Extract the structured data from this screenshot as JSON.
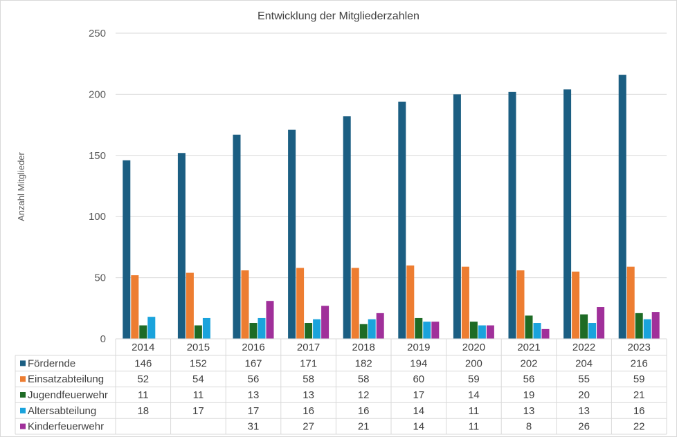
{
  "chart_data": {
    "type": "bar",
    "title": "Entwicklung  der Mitgliederzahlen",
    "xlabel": "",
    "ylabel": "Anzahl Mitglieder",
    "ylim": [
      0,
      250
    ],
    "yticks": [
      0,
      50,
      100,
      150,
      200,
      250
    ],
    "grid": true,
    "legend": "data-table",
    "categories": [
      "2014",
      "2015",
      "2016",
      "2017",
      "2018",
      "2019",
      "2020",
      "2021",
      "2022",
      "2023"
    ],
    "series": [
      {
        "name": "Fördernde",
        "color": "#1b5e82",
        "values": [
          146,
          152,
          167,
          171,
          182,
          194,
          200,
          202,
          204,
          216
        ]
      },
      {
        "name": "Einsatzabteilung",
        "color": "#ed7d31",
        "values": [
          52,
          54,
          56,
          58,
          58,
          60,
          59,
          56,
          55,
          59
        ]
      },
      {
        "name": "Jugendfeuerwehr",
        "color": "#1e6b25",
        "values": [
          11,
          11,
          13,
          13,
          12,
          17,
          14,
          19,
          20,
          21
        ]
      },
      {
        "name": "Altersabteilung",
        "color": "#1aa3dc",
        "values": [
          18,
          17,
          17,
          16,
          16,
          14,
          11,
          13,
          13,
          16
        ]
      },
      {
        "name": "Kinderfeuerwehr",
        "color": "#a0309a",
        "values": [
          null,
          null,
          31,
          27,
          21,
          14,
          11,
          8,
          26,
          22
        ]
      }
    ]
  }
}
